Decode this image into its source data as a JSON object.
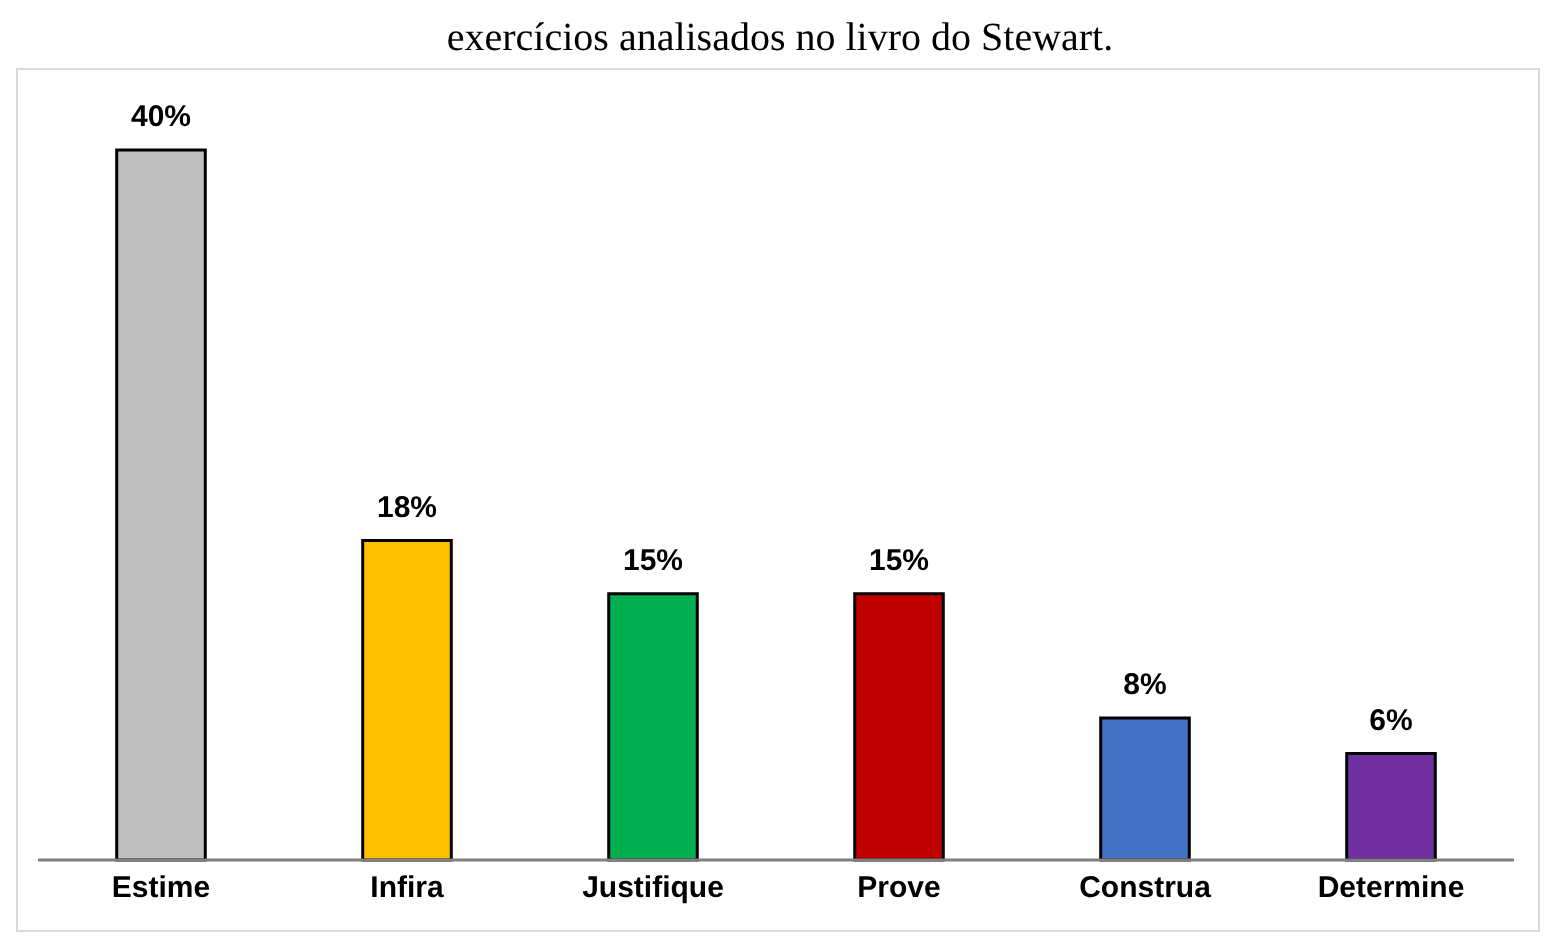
{
  "chart_data": {
    "type": "bar",
    "title": "exercícios analisados no livro do Stewart.",
    "categories": [
      "Estime",
      "Infira",
      "Justifique",
      "Prove",
      "Construa",
      "Determine"
    ],
    "values": [
      40,
      18,
      15,
      15,
      8,
      6
    ],
    "value_labels": [
      "40%",
      "18%",
      "15%",
      "15%",
      "8%",
      "6%"
    ],
    "colors": [
      "#bfbfbf",
      "#ffc000",
      "#00b050",
      "#c00000",
      "#4472c4",
      "#7030a0"
    ],
    "grid": false,
    "legend": false
  }
}
